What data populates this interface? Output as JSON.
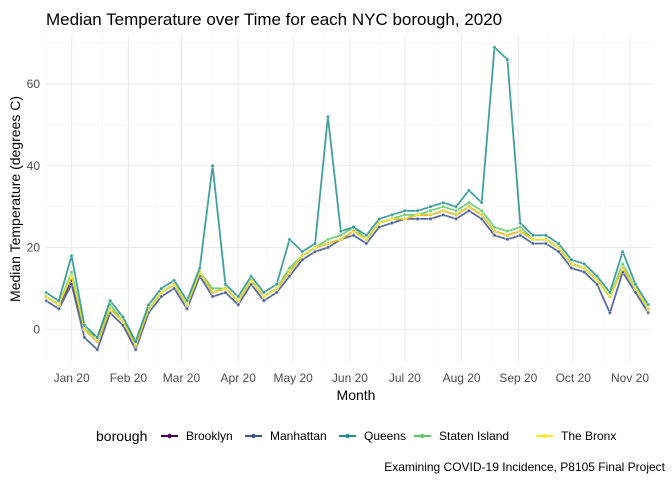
{
  "chart_data": {
    "type": "line",
    "title": "Median Temperature over Time for each NYC borough, 2020",
    "xlabel": "Month",
    "ylabel": "Median Temperature (degrees C)",
    "caption": "Examining COVID-19 Incidence, P8105 Final Project",
    "legend_title": "borough",
    "legend_position": "bottom",
    "grid": true,
    "xlim": [
      "2020-01-01",
      "2020-11-27"
    ],
    "ylim": [
      -8,
      72
    ],
    "x_ticks": [
      "Jan 20",
      "Feb 20",
      "Mar 20",
      "Apr 20",
      "May 20",
      "Jun 20",
      "Jul 20",
      "Aug 20",
      "Sep 20",
      "Oct 20",
      "Nov 20"
    ],
    "y_ticks": [
      0,
      20,
      40,
      60
    ],
    "x": [
      "2020-01-01",
      "2020-01-08",
      "2020-01-15",
      "2020-01-22",
      "2020-01-29",
      "2020-02-05",
      "2020-02-12",
      "2020-02-19",
      "2020-02-26",
      "2020-03-04",
      "2020-03-11",
      "2020-03-18",
      "2020-03-25",
      "2020-04-01",
      "2020-04-08",
      "2020-04-15",
      "2020-04-22",
      "2020-04-29",
      "2020-05-06",
      "2020-05-13",
      "2020-05-20",
      "2020-05-27",
      "2020-06-03",
      "2020-06-10",
      "2020-06-17",
      "2020-06-24",
      "2020-07-01",
      "2020-07-08",
      "2020-07-15",
      "2020-07-22",
      "2020-07-29",
      "2020-08-05",
      "2020-08-12",
      "2020-08-19",
      "2020-08-26",
      "2020-09-02",
      "2020-09-09",
      "2020-09-16",
      "2020-09-23",
      "2020-09-30",
      "2020-10-07",
      "2020-10-14",
      "2020-10-21",
      "2020-10-28",
      "2020-11-04",
      "2020-11-11",
      "2020-11-18",
      "2020-11-25"
    ],
    "series": [
      {
        "name": "Brooklyn",
        "color": "#440154",
        "values": [
          8,
          6,
          12,
          0,
          -3,
          5,
          2,
          -4,
          5,
          9,
          11,
          6,
          14,
          9,
          10,
          7,
          12,
          8,
          10,
          14,
          18,
          20,
          21,
          22,
          24,
          22,
          26,
          27,
          27,
          28,
          28,
          29,
          28,
          30,
          28,
          24,
          23,
          24,
          22,
          22,
          20,
          16,
          15,
          12,
          8,
          15,
          10,
          5
        ]
      },
      {
        "name": "Manhattan",
        "color": "#3b528b",
        "values": [
          7,
          5,
          11,
          -2,
          -5,
          4,
          1,
          -5,
          4,
          8,
          10,
          5,
          13,
          8,
          9,
          6,
          11,
          7,
          9,
          13,
          17,
          19,
          20,
          22,
          23,
          21,
          25,
          26,
          27,
          27,
          27,
          28,
          27,
          29,
          27,
          23,
          22,
          23,
          21,
          21,
          19,
          15,
          14,
          11,
          4,
          14,
          9,
          4
        ]
      },
      {
        "name": "Queens",
        "color": "#21908c",
        "values": [
          9,
          7,
          18,
          1,
          -2,
          7,
          3,
          -3,
          6,
          10,
          12,
          7,
          15,
          40,
          11,
          8,
          13,
          9,
          11,
          22,
          19,
          21,
          52,
          24,
          25,
          23,
          27,
          28,
          29,
          29,
          30,
          31,
          30,
          34,
          31,
          69,
          66,
          26,
          23,
          23,
          21,
          17,
          16,
          13,
          9,
          19,
          11,
          6
        ]
      },
      {
        "name": "Staten Island",
        "color": "#5dc863",
        "values": [
          8,
          6,
          14,
          0,
          -2,
          6,
          2,
          -3,
          5,
          9,
          11,
          6,
          14,
          10,
          10,
          7,
          12,
          8,
          10,
          15,
          18,
          20,
          22,
          23,
          25,
          22,
          26,
          27,
          28,
          28,
          29,
          30,
          29,
          31,
          29,
          25,
          24,
          25,
          22,
          22,
          20,
          16,
          15,
          12,
          8,
          16,
          10,
          5
        ]
      },
      {
        "name": "The Bronx",
        "color": "#fde725",
        "values": [
          8,
          6,
          13,
          0,
          -3,
          5,
          2,
          -4,
          5,
          9,
          11,
          6,
          14,
          9,
          10,
          7,
          12,
          8,
          10,
          14,
          18,
          20,
          21,
          22,
          24,
          22,
          26,
          27,
          27,
          28,
          28,
          29,
          28,
          30,
          28,
          24,
          23,
          24,
          22,
          22,
          20,
          16,
          15,
          12,
          8,
          15,
          10,
          5
        ]
      }
    ]
  }
}
